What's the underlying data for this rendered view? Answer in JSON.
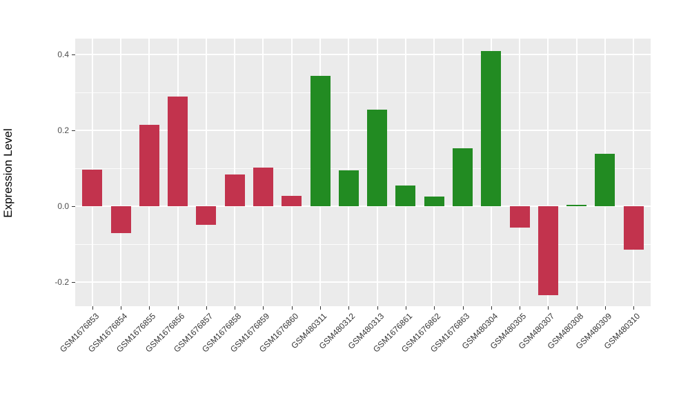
{
  "chart_data": {
    "type": "bar",
    "title": "",
    "xlabel": "",
    "ylabel": "Expression Level",
    "categories": [
      "GSM1676853",
      "GSM1676854",
      "GSM1676855",
      "GSM1676856",
      "GSM1676857",
      "GSM1676858",
      "GSM1676859",
      "GSM1676860",
      "GSM480311",
      "GSM480312",
      "GSM480313",
      "GSM1676861",
      "GSM1676862",
      "GSM1676863",
      "GSM480304",
      "GSM480305",
      "GSM480307",
      "GSM480308",
      "GSM480309",
      "GSM480310"
    ],
    "values": [
      0.097,
      -0.07,
      0.215,
      0.289,
      -0.048,
      0.085,
      0.102,
      0.027,
      0.344,
      0.095,
      0.256,
      0.056,
      0.026,
      0.153,
      0.41,
      -0.055,
      -0.235,
      0.005,
      0.138,
      -0.114
    ],
    "bar_groups": [
      "red",
      "red",
      "red",
      "red",
      "red",
      "red",
      "red",
      "red",
      "green",
      "green",
      "green",
      "green",
      "green",
      "green",
      "green",
      "red",
      "red",
      "green",
      "green",
      "red"
    ],
    "group_colors": {
      "red": "#C2334D",
      "green": "#228B22"
    },
    "ytick_values": [
      0.4,
      0.2,
      0.0,
      -0.2
    ],
    "ytick_labels": [
      "0.4",
      "0.2",
      "0.0",
      "-0.2"
    ],
    "minor_ytick_values": [
      0.3,
      0.1,
      -0.1
    ],
    "ylim": [
      -0.2633,
      0.4427
    ],
    "grid": true,
    "legend": false,
    "panel_background": "#EBEBEB",
    "grid_color": "#FFFFFF",
    "tick_label_color": "#4D4D4D"
  }
}
